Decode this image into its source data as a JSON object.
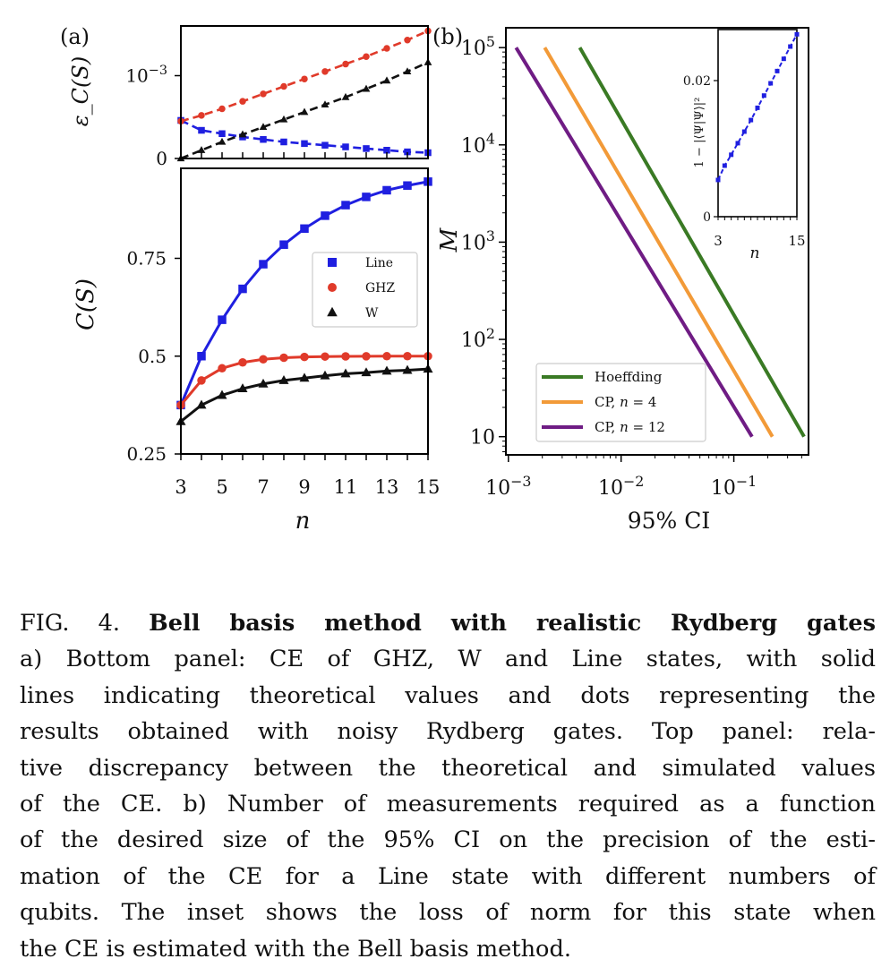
{
  "panel_a_label": "(a)",
  "panel_b_label": "(b)",
  "chart_data": [
    {
      "id": "a_top",
      "type": "line",
      "title": "",
      "ylabel": "ε_C(S)",
      "xlabel": "",
      "x": [
        3,
        4,
        5,
        6,
        7,
        8,
        9,
        10,
        11,
        12,
        13,
        14,
        15
      ],
      "xlim": [
        3,
        15
      ],
      "ylim": [
        0,
        0.0016
      ],
      "ytick_values": [
        0,
        0.001
      ],
      "ytick_labels": [
        "0",
        "10⁻³"
      ],
      "series": [
        {
          "name": "Line",
          "color": "#1f1fe0",
          "marker": "square",
          "values": [
            0.00046,
            0.00034,
            0.0003,
            0.00026,
            0.00023,
            0.0002,
            0.00018,
            0.00016,
            0.00014,
            0.00012,
            0.0001,
            8e-05,
            7e-05
          ]
        },
        {
          "name": "GHZ",
          "color": "#e03a2a",
          "marker": "circle",
          "values": [
            0.00045,
            0.00052,
            0.0006,
            0.00069,
            0.00078,
            0.00087,
            0.00096,
            0.00105,
            0.00114,
            0.00123,
            0.00133,
            0.00143,
            0.00154
          ]
        },
        {
          "name": "W",
          "color": "#111111",
          "marker": "triangle",
          "values": [
            0.0,
            0.0001,
            0.0002,
            0.00029,
            0.00038,
            0.00047,
            0.00056,
            0.00065,
            0.00074,
            0.00084,
            0.00094,
            0.00105,
            0.00116
          ]
        }
      ]
    },
    {
      "id": "a_bottom",
      "type": "line",
      "title": "",
      "ylabel": "C(S)",
      "xlabel": "n",
      "x": [
        3,
        4,
        5,
        6,
        7,
        8,
        9,
        10,
        11,
        12,
        13,
        14,
        15
      ],
      "xlim": [
        3,
        15
      ],
      "ylim": [
        0.25,
        0.98
      ],
      "xticks": [
        "3",
        "5",
        "7",
        "9",
        "11",
        "13",
        "15"
      ],
      "ytick_values": [
        0.25,
        0.5,
        0.75
      ],
      "ytick_labels": [
        "0.25",
        "0.5",
        "0.75"
      ],
      "legend": {
        "position": "center-right",
        "entries": [
          "Line",
          "GHZ",
          "W"
        ]
      },
      "series": [
        {
          "name": "Line",
          "color": "#1f1fe0",
          "marker": "square",
          "values": [
            0.375,
            0.5,
            0.593,
            0.672,
            0.735,
            0.785,
            0.826,
            0.859,
            0.886,
            0.907,
            0.924,
            0.936,
            0.946
          ]
        },
        {
          "name": "GHZ",
          "color": "#e03a2a",
          "marker": "circle",
          "values": [
            0.375,
            0.438,
            0.469,
            0.484,
            0.492,
            0.496,
            0.498,
            0.499,
            0.4995,
            0.4998,
            0.4999,
            0.5,
            0.5
          ]
        },
        {
          "name": "W",
          "color": "#111111",
          "marker": "triangle",
          "values": [
            0.333,
            0.375,
            0.4,
            0.417,
            0.429,
            0.438,
            0.444,
            0.45,
            0.455,
            0.458,
            0.462,
            0.464,
            0.467
          ]
        }
      ]
    },
    {
      "id": "b_main",
      "type": "line",
      "title": "",
      "xlabel": "95% CI",
      "ylabel": "M",
      "xscale": "log",
      "yscale": "log",
      "xlim": [
        0.00095,
        0.46
      ],
      "ylim": [
        6.5,
        160000
      ],
      "xtick_values": [
        0.001,
        0.01,
        0.1
      ],
      "xtick_labels": [
        "10⁻³",
        "10⁻²",
        "10⁻¹"
      ],
      "ytick_values": [
        10,
        100,
        1000,
        10000,
        100000
      ],
      "ytick_labels": [
        "10",
        "10²",
        "10³",
        "10⁴",
        "10⁵"
      ],
      "legend": {
        "position": "lower-left",
        "entries": [
          "Hoeffding",
          "CP, n = 4",
          "CP, n = 12"
        ]
      },
      "series": [
        {
          "name": "Hoeffding",
          "color": "#3a7a24",
          "x": [
            0.0043,
            0.42
          ],
          "values": [
            100000,
            10
          ]
        },
        {
          "name": "CP, n = 4",
          "color": "#f29a38",
          "x": [
            0.0021,
            0.22
          ],
          "values": [
            100000,
            10
          ]
        },
        {
          "name": "CP, n = 12",
          "color": "#6f1c84",
          "x": [
            0.00117,
            0.145
          ],
          "values": [
            100000,
            10
          ]
        }
      ]
    },
    {
      "id": "b_inset",
      "type": "line",
      "title": "",
      "xlabel": "n",
      "ylabel": "1 − |⟨Ψ|Ψ⟩|²",
      "x": [
        3,
        4,
        5,
        6,
        7,
        8,
        9,
        10,
        11,
        12,
        13,
        14,
        15
      ],
      "xlim": [
        3,
        15
      ],
      "ylim": [
        0,
        0.0275
      ],
      "xtick_labels": [
        "3",
        "15"
      ],
      "ytick_values": [
        0,
        0.02
      ],
      "ytick_labels": [
        "0",
        "0.02"
      ],
      "series": [
        {
          "name": "Line",
          "color": "#1f1fe0",
          "marker": "square",
          "values": [
            0.0054,
            0.0075,
            0.0091,
            0.0108,
            0.0125,
            0.0142,
            0.016,
            0.0178,
            0.0196,
            0.0214,
            0.0232,
            0.025,
            0.0268
          ]
        }
      ]
    }
  ],
  "caption": {
    "label": "FIG. 4.",
    "title": "Bell basis method with realistic Rydberg gates",
    "lines": [
      "a) Bottom panel: CE of GHZ, W and Line states, with solid",
      "lines indicating theoretical values and dots representing the",
      "results obtained with noisy Rydberg gates. Top panel: rela-",
      "tive discrepancy between the theoretical and simulated values",
      "of the CE. b) Number of measurements required as a function",
      "of the desired size of the 95% CI on the precision of the esti-",
      "mation of the CE for a Line state with different numbers of",
      "qubits. The inset shows the loss of norm for this state when",
      "the CE is estimated with the Bell basis method."
    ]
  }
}
